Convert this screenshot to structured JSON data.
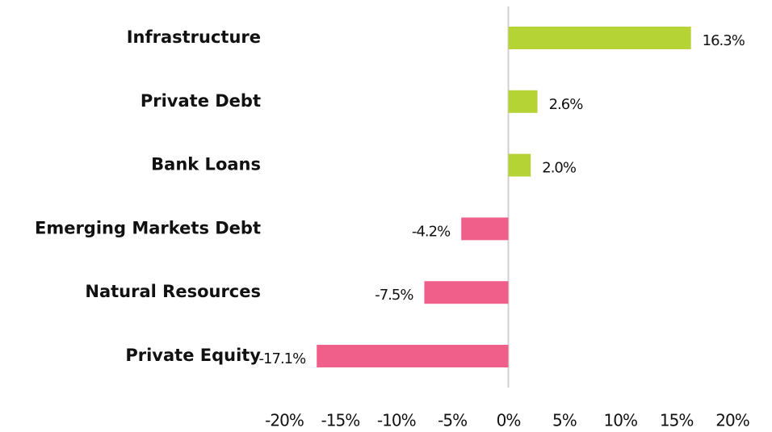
{
  "chart_data": {
    "type": "barh",
    "categories": [
      "Infrastructure",
      "Private Debt",
      "Bank Loans",
      "Emerging Markets Debt",
      "Natural Resources",
      "Private Equity"
    ],
    "values": [
      16.3,
      2.6,
      2.0,
      -4.2,
      -7.5,
      -17.1
    ],
    "value_labels": [
      "16.3%",
      "2.6%",
      "2.0%",
      "-4.2%",
      "-7.5%",
      "-17.1%"
    ],
    "colors": [
      "#b5d334",
      "#b5d334",
      "#b5d334",
      "#f05f8a",
      "#f05f8a",
      "#f05f8a"
    ],
    "xlim": [
      -20,
      20
    ],
    "xticks": [
      {
        "value": -20,
        "label": "-20%"
      },
      {
        "value": -15,
        "label": "-15%"
      },
      {
        "value": -10,
        "label": "-10%"
      },
      {
        "value": -5,
        "label": "-5%"
      },
      {
        "value": 0,
        "label": "0%"
      },
      {
        "value": 5,
        "label": "5%"
      },
      {
        "value": 10,
        "label": "10%"
      },
      {
        "value": 15,
        "label": "15%"
      },
      {
        "value": 20,
        "label": "20%"
      }
    ],
    "grid": false
  }
}
